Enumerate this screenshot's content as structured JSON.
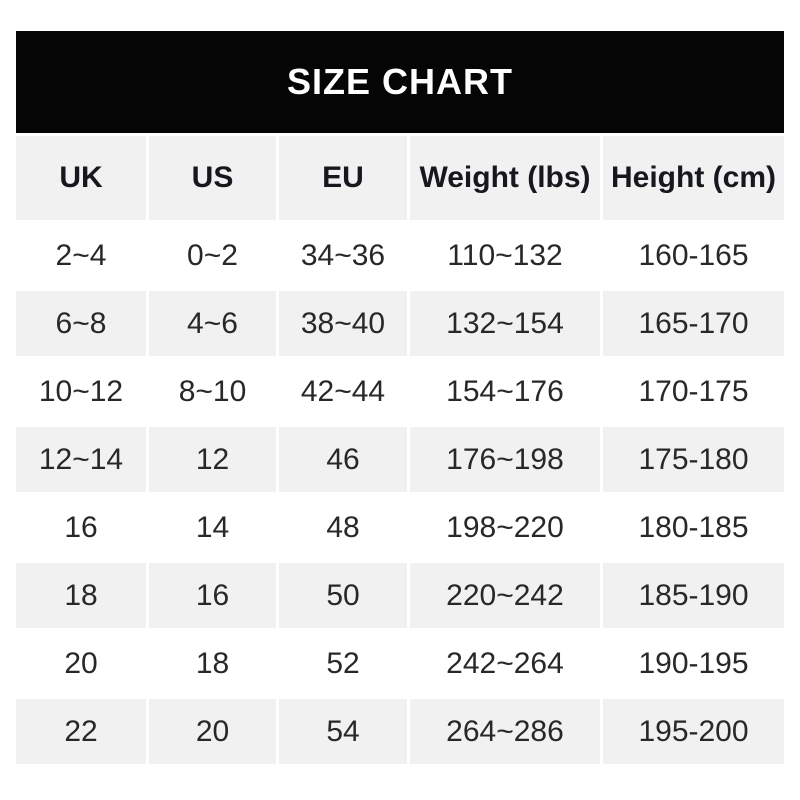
{
  "page": {
    "background_color": "#ffffff"
  },
  "banner": {
    "bg_color": "#050505",
    "text_color": "#ffffff"
  },
  "table_style": {
    "header_bg_color": "#f1f1f1",
    "alt_row_bg_color": "#f1f1f1",
    "row_bg_color": "#ffffff",
    "header_text_color": "#16181d",
    "cell_text_color": "#282828",
    "cell_gap_color": "#ffffff"
  },
  "chart_data": {
    "type": "table",
    "title": "SIZE CHART",
    "columns": [
      "UK",
      "US",
      "EU",
      "Weight (lbs)",
      "Height (cm)"
    ],
    "rows": [
      [
        "2~4",
        "0~2",
        "34~36",
        "110~132",
        "160-165"
      ],
      [
        "6~8",
        "4~6",
        "38~40",
        "132~154",
        "165-170"
      ],
      [
        "10~12",
        "8~10",
        "42~44",
        "154~176",
        "170-175"
      ],
      [
        "12~14",
        "12",
        "46",
        "176~198",
        "175-180"
      ],
      [
        "16",
        "14",
        "48",
        "198~220",
        "180-185"
      ],
      [
        "18",
        "16",
        "50",
        "220~242",
        "185-190"
      ],
      [
        "20",
        "18",
        "52",
        "242~264",
        "190-195"
      ],
      [
        "22",
        "20",
        "54",
        "264~286",
        "195-200"
      ]
    ]
  }
}
